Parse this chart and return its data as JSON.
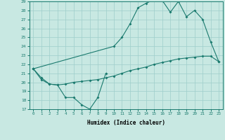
{
  "xlabel": "Humidex (Indice chaleur)",
  "x": [
    0,
    1,
    2,
    3,
    4,
    5,
    6,
    7,
    8,
    9,
    10,
    11,
    12,
    13,
    14,
    15,
    16,
    17,
    18,
    19,
    20,
    21,
    22,
    23
  ],
  "line1_x": [
    0,
    1,
    2,
    3,
    4,
    5,
    6,
    7,
    8,
    9
  ],
  "line1_y": [
    21.5,
    20.5,
    19.8,
    19.7,
    18.3,
    18.3,
    17.5,
    17.0,
    18.3,
    21.0
  ],
  "line2_x": [
    0,
    10,
    11,
    12,
    13,
    14,
    15,
    16,
    17,
    18,
    19,
    20,
    21,
    22,
    23
  ],
  "line2_y": [
    21.5,
    24.0,
    25.0,
    26.5,
    28.3,
    28.8,
    29.2,
    29.1,
    27.8,
    29.0,
    27.3,
    28.0,
    27.0,
    24.5,
    22.3
  ],
  "line3_x": [
    0,
    1,
    2,
    3,
    4,
    5,
    6,
    7,
    8,
    9,
    10,
    11,
    12,
    13,
    14,
    15,
    16,
    17,
    18,
    19,
    20,
    21,
    22,
    23
  ],
  "line3_y": [
    21.5,
    20.3,
    19.8,
    19.7,
    19.8,
    20.0,
    20.1,
    20.2,
    20.3,
    20.5,
    20.7,
    21.0,
    21.3,
    21.5,
    21.7,
    22.0,
    22.2,
    22.4,
    22.6,
    22.7,
    22.8,
    22.9,
    22.9,
    22.3
  ],
  "ylim": [
    17,
    29
  ],
  "xlim": [
    0,
    23
  ],
  "yticks": [
    17,
    18,
    19,
    20,
    21,
    22,
    23,
    24,
    25,
    26,
    27,
    28,
    29
  ],
  "xticks": [
    0,
    1,
    2,
    3,
    4,
    5,
    6,
    7,
    8,
    9,
    10,
    11,
    12,
    13,
    14,
    15,
    16,
    17,
    18,
    19,
    20,
    21,
    22,
    23
  ],
  "line_color": "#1a7a6e",
  "bg_color": "#c8e8e2",
  "grid_color": "#9ececa"
}
